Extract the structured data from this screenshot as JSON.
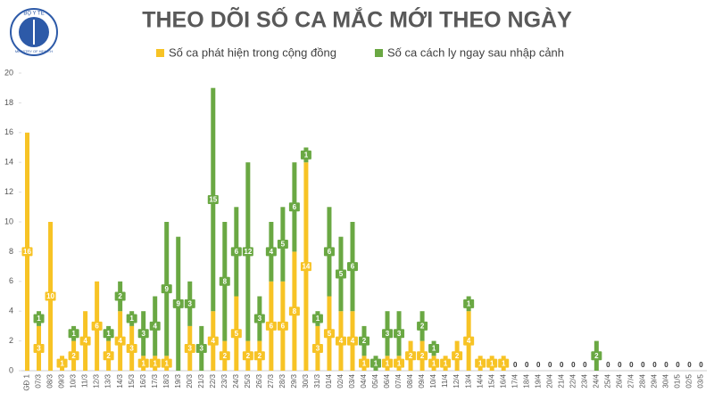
{
  "logo": {
    "top": "BỘ Y TẾ",
    "bottom": "MINISTRY OF HEALTH"
  },
  "chart_data": {
    "type": "stacked-bar",
    "title": "THEO DÕI SỐ CA MẮC MỚI THEO NGÀY",
    "categories": [
      "GĐ 1",
      "07/3",
      "08/3",
      "09/3",
      "10/3",
      "11/3",
      "12/3",
      "13/3",
      "14/3",
      "15/3",
      "16/3",
      "17/3",
      "18/3",
      "19/3",
      "20/3",
      "21/3",
      "22/3",
      "23/3",
      "24/3",
      "25/3",
      "26/3",
      "27/3",
      "28/3",
      "29/3",
      "30/3",
      "31/3",
      "01/4",
      "02/4",
      "03/4",
      "04/4",
      "05/4",
      "06/4",
      "07/4",
      "08/4",
      "09/4",
      "10/4",
      "11/4",
      "12/4",
      "13/4",
      "14/4",
      "15/4",
      "16/4",
      "17/4",
      "18/4",
      "19/4",
      "20/4",
      "21/4",
      "22/4",
      "23/4",
      "24/4",
      "25/4",
      "26/4",
      "27/4",
      "28/4",
      "29/4",
      "30/4",
      "01/5",
      "02/5",
      "03/5"
    ],
    "series": [
      {
        "name": "Số ca phát hiện trong cộng đồng",
        "color": "#f7c325",
        "values": [
          16,
          3,
          10,
          1,
          2,
          4,
          6,
          2,
          4,
          3,
          1,
          1,
          1,
          0,
          3,
          0,
          4,
          2,
          5,
          2,
          2,
          6,
          6,
          8,
          14,
          3,
          5,
          4,
          4,
          1,
          0,
          1,
          1,
          2,
          2,
          1,
          1,
          2,
          4,
          1,
          1,
          1,
          0,
          0,
          0,
          0,
          0,
          0,
          0,
          0,
          0,
          0,
          0,
          0,
          0,
          0,
          0,
          0,
          0
        ]
      },
      {
        "name": "Số ca cách ly ngay sau nhập cảnh",
        "color": "#6aa843",
        "values": [
          0,
          1,
          0,
          0,
          1,
          0,
          0,
          1,
          2,
          1,
          3,
          4,
          9,
          9,
          3,
          3,
          15,
          8,
          6,
          12,
          3,
          4,
          5,
          6,
          1,
          1,
          6,
          5,
          6,
          2,
          1,
          3,
          3,
          0,
          2,
          1,
          0,
          0,
          1,
          0,
          0,
          0,
          0,
          0,
          0,
          0,
          0,
          0,
          0,
          2,
          0,
          0,
          0,
          0,
          0,
          0,
          0,
          0,
          0
        ]
      }
    ],
    "ylim": [
      0,
      20
    ],
    "yticks": [
      0,
      2,
      4,
      6,
      8,
      10,
      12,
      14,
      16,
      18,
      20
    ],
    "grid": false
  }
}
